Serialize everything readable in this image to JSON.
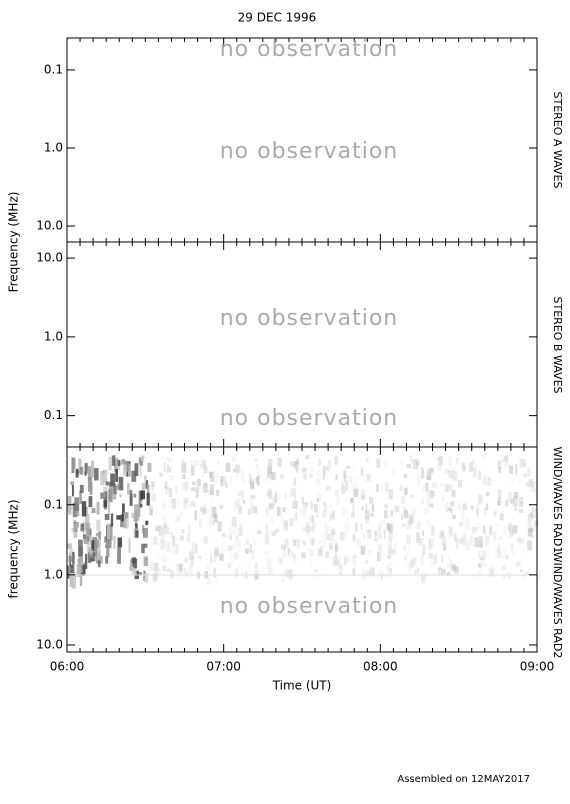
{
  "chart_data": {
    "type": "spectrogram",
    "title": "29 DEC 1996",
    "xlabel": "Time (UT)",
    "xticks": [
      "06:00",
      "07:00",
      "08:00",
      "09:00"
    ],
    "log_y": true,
    "footer": "Assembled on 12MAY2017",
    "panels": [
      {
        "ylabel": "Frequency (MHz)",
        "instrument": [
          "STEREO A WAVES"
        ],
        "ylim": [
          16,
          0.039
        ],
        "yticks": [
          0.1,
          {
            "value": 1,
            "label": "1.0"
          },
          {
            "value": 10,
            "label": "10.0"
          }
        ],
        "notes": [
          "no observation",
          "no observation"
        ]
      },
      {
        "instrument": [
          "STEREO B WAVES"
        ],
        "ylim": [
          0.04,
          16
        ],
        "yticks": [
          {
            "value": 10,
            "label": "10.0"
          },
          {
            "value": 1,
            "label": "1.0"
          },
          0.1
        ],
        "notes": [
          "no observation",
          "no observation"
        ]
      },
      {
        "ylabel": "frequency (MHz)",
        "instrument": [
          "WIND/WAVES RAD1",
          "WIND/WAVES RAD2"
        ],
        "ylim": [
          12.6,
          0.015
        ],
        "yticks": [
          0.1,
          {
            "value": 1,
            "label": "1.0"
          },
          {
            "value": 10,
            "label": "10.0"
          }
        ],
        "notes": [
          "no observation"
        ]
      }
    ]
  }
}
